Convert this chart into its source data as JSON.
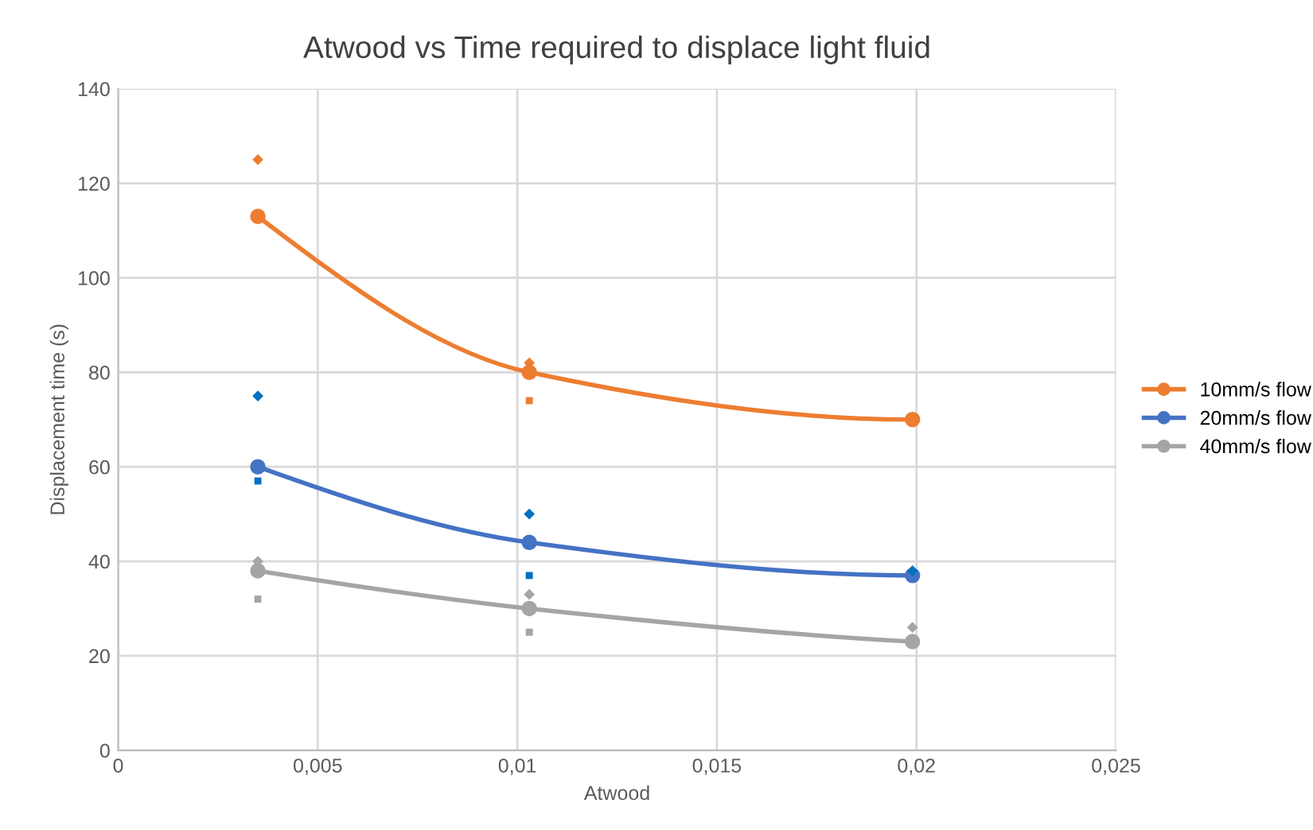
{
  "chart_data": {
    "type": "line",
    "title": "Atwood vs Time required to displace light fluid",
    "xlabel": "Atwood",
    "ylabel": "Displacement time (s)",
    "x": [
      0.0035,
      0.0103,
      0.0199
    ],
    "series": [
      {
        "name": "10mm/s flow",
        "color": "#ed7d31",
        "values": [
          113,
          80,
          70
        ],
        "marker": "circle"
      },
      {
        "name": "20mm/s flow",
        "color": "#4472c4",
        "values": [
          60,
          44,
          37
        ],
        "marker": "circle"
      },
      {
        "name": "40mm/s flow",
        "color": "#a5a5a5",
        "values": [
          38,
          30,
          23
        ],
        "marker": "circle"
      },
      {
        "type": "scatter",
        "color": "#ed7d31",
        "values": [
          125,
          82,
          null
        ],
        "marker": "diamond"
      },
      {
        "type": "scatter",
        "color": "#0070c0",
        "values": [
          75,
          50,
          38
        ],
        "marker": "diamond"
      },
      {
        "type": "scatter",
        "color": "#a5a5a5",
        "values": [
          40,
          33,
          26
        ],
        "marker": "diamond"
      },
      {
        "type": "scatter",
        "color": "#ed7d31",
        "values": [
          null,
          74,
          null
        ],
        "marker": "square"
      },
      {
        "type": "scatter",
        "color": "#0070c0",
        "values": [
          57,
          37,
          null
        ],
        "marker": "square"
      },
      {
        "type": "scatter",
        "color": "#a5a5a5",
        "values": [
          32,
          25,
          null
        ],
        "marker": "square"
      }
    ],
    "xlim": [
      0,
      0.025
    ],
    "xticks": [
      0,
      {
        "value": 0.005,
        "label": "0,005"
      },
      {
        "value": 0.01,
        "label": "0,01"
      },
      {
        "value": 0.015,
        "label": "0,015"
      },
      {
        "value": 0.02,
        "label": "0,02"
      },
      {
        "value": 0.025,
        "label": "0,025"
      }
    ],
    "ylim": [
      0,
      140
    ],
    "yticks": [
      0,
      20,
      40,
      60,
      80,
      100,
      120,
      140
    ],
    "grid": true,
    "legend": "right"
  }
}
